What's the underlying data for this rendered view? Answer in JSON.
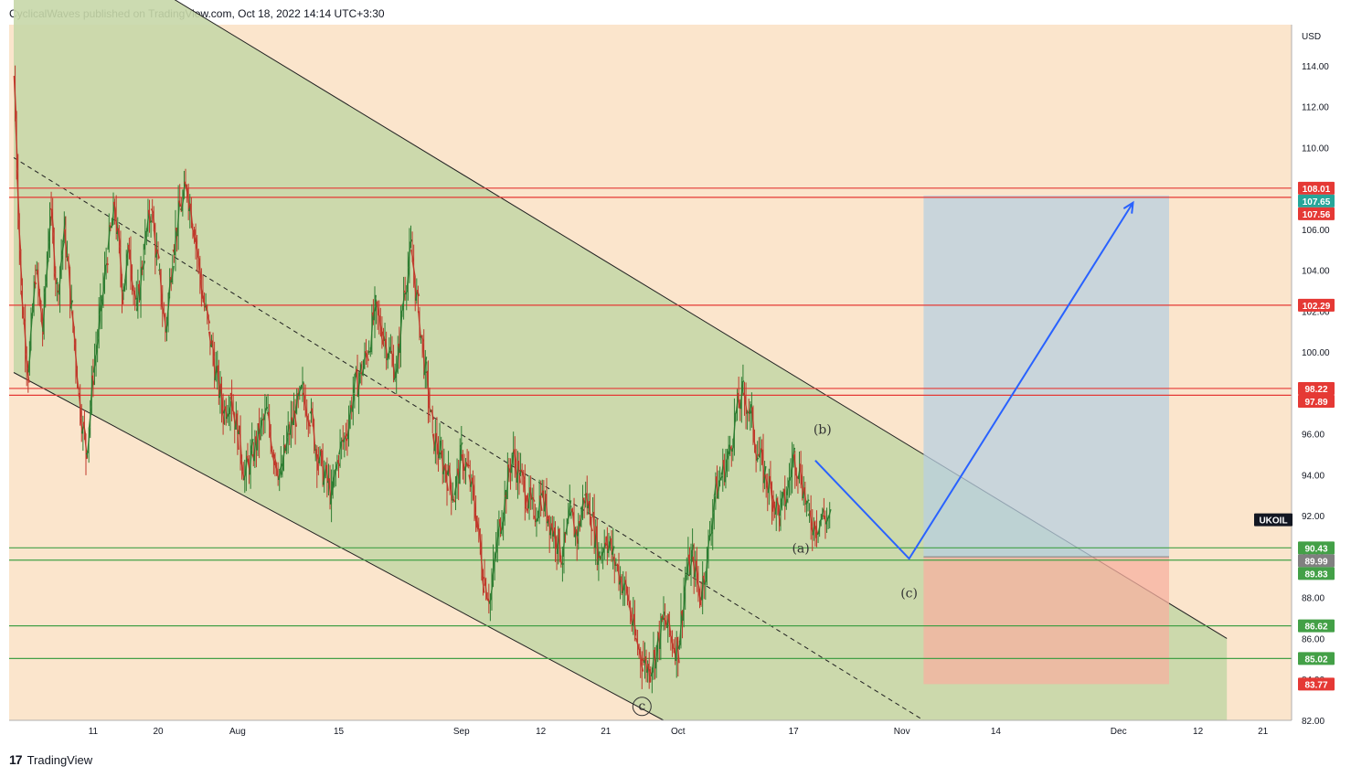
{
  "header": {
    "publisher_line": "CyclicalWaves published on TradingView.com, Oct 18, 2022 14:14 UTC+3:30"
  },
  "footer": {
    "brand": "TradingView",
    "logo_glyph": "17"
  },
  "colors": {
    "background": "#fbe5cc",
    "channel_fill": "#c6d7a8",
    "candle_up": "#2e7d32",
    "candle_down": "#c0392b",
    "resistance": "#e53935",
    "support": "#43a047",
    "projection": "#2962ff",
    "target_zone": "#b8cfe0",
    "stop_zone": "#f7b0a0"
  },
  "chart_data": {
    "type": "candlestick",
    "symbol": "UKOIL",
    "currency": "USD",
    "ylim": [
      82,
      116
    ],
    "y_ticks": [
      82,
      84,
      86,
      88,
      90,
      92,
      94,
      96,
      98,
      100,
      102,
      104,
      106,
      108,
      110,
      112,
      114
    ],
    "x_ticks": [
      {
        "label": "11",
        "day": 11
      },
      {
        "label": "20",
        "day": 20
      },
      {
        "label": "Aug",
        "day": 31
      },
      {
        "label": "15",
        "day": 45
      },
      {
        "label": "Sep",
        "day": 62
      },
      {
        "label": "12",
        "day": 73
      },
      {
        "label": "21",
        "day": 82
      },
      {
        "label": "Oct",
        "day": 92
      },
      {
        "label": "17",
        "day": 108
      },
      {
        "label": "Nov",
        "day": 123
      },
      {
        "label": "14",
        "day": 136
      },
      {
        "label": "Dec",
        "day": 153
      },
      {
        "label": "12",
        "day": 164
      },
      {
        "label": "21",
        "day": 173
      }
    ],
    "price_series": [
      [
        0,
        113.5
      ],
      [
        1,
        103
      ],
      [
        2,
        99
      ],
      [
        3,
        104
      ],
      [
        4,
        101
      ],
      [
        5,
        107
      ],
      [
        6,
        103
      ],
      [
        7,
        106
      ],
      [
        8,
        102
      ],
      [
        9,
        98
      ],
      [
        10,
        95
      ],
      [
        11,
        99
      ],
      [
        12,
        102
      ],
      [
        13,
        105
      ],
      [
        14,
        107
      ],
      [
        15,
        103
      ],
      [
        16,
        105
      ],
      [
        17,
        102
      ],
      [
        18,
        105
      ],
      [
        19,
        107
      ],
      [
        20,
        104
      ],
      [
        21,
        101
      ],
      [
        22,
        105
      ],
      [
        23,
        107
      ],
      [
        24,
        108
      ],
      [
        25,
        106
      ],
      [
        26,
        103
      ],
      [
        27,
        101
      ],
      [
        28,
        99
      ],
      [
        29,
        97
      ],
      [
        30,
        98
      ],
      [
        31,
        96
      ],
      [
        32,
        94
      ],
      [
        33,
        95
      ],
      [
        34,
        96
      ],
      [
        35,
        97
      ],
      [
        36,
        95
      ],
      [
        37,
        94
      ],
      [
        38,
        96
      ],
      [
        39,
        97
      ],
      [
        40,
        98
      ],
      [
        41,
        97
      ],
      [
        42,
        95
      ],
      [
        43,
        94
      ],
      [
        44,
        93
      ],
      [
        45,
        95
      ],
      [
        46,
        96
      ],
      [
        47,
        98
      ],
      [
        48,
        99
      ],
      [
        49,
        100
      ],
      [
        50,
        102
      ],
      [
        51,
        101
      ],
      [
        52,
        100
      ],
      [
        53,
        99
      ],
      [
        54,
        103
      ],
      [
        55,
        105
      ],
      [
        56,
        102
      ],
      [
        57,
        99
      ],
      [
        58,
        96
      ],
      [
        59,
        95
      ],
      [
        60,
        94
      ],
      [
        61,
        93
      ],
      [
        62,
        95
      ],
      [
        63,
        94
      ],
      [
        64,
        92
      ],
      [
        65,
        89
      ],
      [
        66,
        88
      ],
      [
        67,
        91
      ],
      [
        68,
        93
      ],
      [
        69,
        95
      ],
      [
        70,
        94
      ],
      [
        71,
        93
      ],
      [
        72,
        92
      ],
      [
        73,
        93
      ],
      [
        74,
        92
      ],
      [
        75,
        91
      ],
      [
        76,
        90
      ],
      [
        77,
        92
      ],
      [
        78,
        91
      ],
      [
        79,
        93
      ],
      [
        80,
        92
      ],
      [
        81,
        90
      ],
      [
        82,
        91
      ],
      [
        83,
        90
      ],
      [
        84,
        89
      ],
      [
        85,
        88
      ],
      [
        86,
        86
      ],
      [
        87,
        85
      ],
      [
        88,
        84.5
      ],
      [
        89,
        85.5
      ],
      [
        90,
        87
      ],
      [
        91,
        86
      ],
      [
        92,
        85.5
      ],
      [
        93,
        89
      ],
      [
        94,
        90
      ],
      [
        95,
        88
      ],
      [
        96,
        90
      ],
      [
        97,
        93
      ],
      [
        98,
        94
      ],
      [
        99,
        95
      ],
      [
        100,
        97
      ],
      [
        101,
        98
      ],
      [
        102,
        97
      ],
      [
        103,
        95
      ],
      [
        104,
        94
      ],
      [
        105,
        93
      ],
      [
        106,
        92
      ],
      [
        107,
        93
      ],
      [
        108,
        95
      ],
      [
        109,
        94
      ],
      [
        110,
        92
      ],
      [
        111,
        91.5
      ],
      [
        112,
        92
      ],
      [
        113,
        91.8
      ]
    ],
    "resistance_levels": [
      108.01,
      107.65,
      107.56,
      102.29,
      98.22,
      97.89
    ],
    "support_levels": [
      90.43,
      89.99,
      89.83,
      86.62,
      85.02,
      83.77
    ],
    "price_tags": [
      {
        "label": "108.01",
        "value": 108.01,
        "color": "#e53935"
      },
      {
        "label": "107.65",
        "value": 107.65,
        "color": "#26a69a"
      },
      {
        "label": "107.56",
        "value": 107.56,
        "color": "#e53935"
      },
      {
        "label": "102.29",
        "value": 102.29,
        "color": "#e53935"
      },
      {
        "label": "98.22",
        "value": 98.22,
        "color": "#e53935"
      },
      {
        "label": "97.89",
        "value": 97.89,
        "color": "#e53935"
      },
      {
        "label": "UKOIL",
        "value": 91.8,
        "color": "#131722"
      },
      {
        "label": "90.43",
        "value": 90.43,
        "color": "#43a047"
      },
      {
        "label": "89.99",
        "value": 89.99,
        "color": "#808080"
      },
      {
        "label": "89.83",
        "value": 89.83,
        "color": "#43a047"
      },
      {
        "label": "86.62",
        "value": 86.62,
        "color": "#43a047"
      },
      {
        "label": "85.02",
        "value": 85.02,
        "color": "#43a047"
      },
      {
        "label": "83.77",
        "value": 83.77,
        "color": "#e53935"
      }
    ],
    "channel": {
      "upper_start": [
        0,
        122
      ],
      "upper_end": [
        168,
        86
      ],
      "lower_start": [
        0,
        99
      ],
      "lower_end": [
        90,
        82
      ]
    },
    "position": {
      "start_day": 126,
      "end_day": 160,
      "entry": 89.99,
      "target": 107.65,
      "stop": 83.77
    },
    "projection_path": [
      [
        111,
        94.7
      ],
      [
        124,
        89.9
      ],
      [
        155,
        107.3
      ]
    ],
    "wave_labels": [
      {
        "label": "(a)",
        "day": 109,
        "value": 90.2
      },
      {
        "label": "(b)",
        "day": 112,
        "value": 96.0
      },
      {
        "label": "(c)",
        "day": 124,
        "value": 88.0
      },
      {
        "label": "c",
        "day": 87,
        "value": 82.5
      }
    ]
  }
}
